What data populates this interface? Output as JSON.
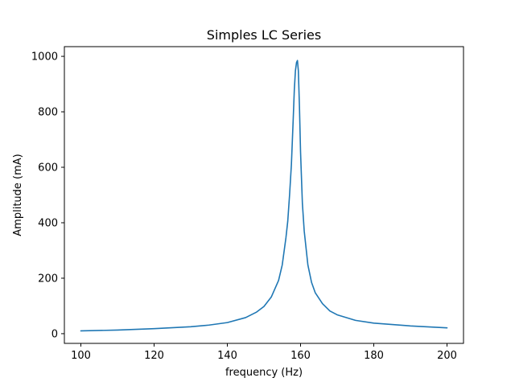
{
  "chart_data": {
    "type": "line",
    "title": "Simples LC Series",
    "xlabel": "frequency (Hz)",
    "ylabel": "Amplitude (mA)",
    "xlim": [
      95.5,
      204.5
    ],
    "ylim": [
      -35,
      1035
    ],
    "xticks": [
      100,
      120,
      140,
      160,
      180,
      200
    ],
    "yticks": [
      0,
      200,
      400,
      600,
      800,
      1000
    ],
    "grid": false,
    "legend": "none",
    "series": [
      {
        "color": "#1f77b4",
        "x": [
          100,
          110,
          120,
          130,
          135,
          140,
          145,
          148,
          150,
          152,
          154,
          155,
          156,
          156.5,
          157,
          157.5,
          158,
          158.3,
          158.6,
          158.9,
          159.15,
          159.4,
          159.7,
          160,
          160.5,
          161,
          162,
          163,
          164,
          166,
          168,
          170,
          175,
          180,
          190,
          200
        ],
        "y": [
          10,
          13,
          18,
          25,
          31,
          40,
          58,
          78,
          98,
          132,
          192,
          248,
          345,
          405,
          500,
          610,
          775,
          880,
          948,
          978,
          985,
          948,
          818,
          655,
          470,
          370,
          248,
          185,
          148,
          108,
          82,
          68,
          48,
          38,
          28,
          21
        ]
      }
    ]
  }
}
